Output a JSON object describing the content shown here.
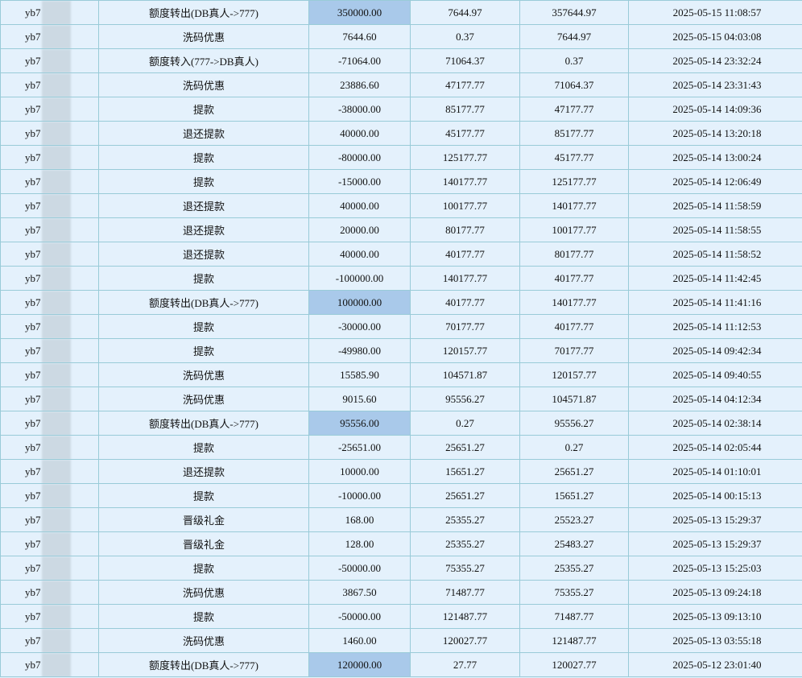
{
  "user_prefix": "yb7",
  "highlight_color": "#a9c9ea",
  "rows": [
    {
      "type": "额度转出(DB真人->777)",
      "amount": "350000.00",
      "before": "7644.97",
      "after": "357644.97",
      "time": "2025-05-15 11:08:57",
      "highlight": true
    },
    {
      "type": "洗码优惠",
      "amount": "7644.60",
      "before": "0.37",
      "after": "7644.97",
      "time": "2025-05-15 04:03:08"
    },
    {
      "type": "额度转入(777->DB真人)",
      "amount": "-71064.00",
      "before": "71064.37",
      "after": "0.37",
      "time": "2025-05-14 23:32:24"
    },
    {
      "type": "洗码优惠",
      "amount": "23886.60",
      "before": "47177.77",
      "after": "71064.37",
      "time": "2025-05-14 23:31:43"
    },
    {
      "type": "提款",
      "amount": "-38000.00",
      "before": "85177.77",
      "after": "47177.77",
      "time": "2025-05-14 14:09:36"
    },
    {
      "type": "退还提款",
      "amount": "40000.00",
      "before": "45177.77",
      "after": "85177.77",
      "time": "2025-05-14 13:20:18"
    },
    {
      "type": "提款",
      "amount": "-80000.00",
      "before": "125177.77",
      "after": "45177.77",
      "time": "2025-05-14 13:00:24"
    },
    {
      "type": "提款",
      "amount": "-15000.00",
      "before": "140177.77",
      "after": "125177.77",
      "time": "2025-05-14 12:06:49"
    },
    {
      "type": "退还提款",
      "amount": "40000.00",
      "before": "100177.77",
      "after": "140177.77",
      "time": "2025-05-14 11:58:59"
    },
    {
      "type": "退还提款",
      "amount": "20000.00",
      "before": "80177.77",
      "after": "100177.77",
      "time": "2025-05-14 11:58:55"
    },
    {
      "type": "退还提款",
      "amount": "40000.00",
      "before": "40177.77",
      "after": "80177.77",
      "time": "2025-05-14 11:58:52"
    },
    {
      "type": "提款",
      "amount": "-100000.00",
      "before": "140177.77",
      "after": "40177.77",
      "time": "2025-05-14 11:42:45"
    },
    {
      "type": "额度转出(DB真人->777)",
      "amount": "100000.00",
      "before": "40177.77",
      "after": "140177.77",
      "time": "2025-05-14 11:41:16",
      "highlight": true
    },
    {
      "type": "提款",
      "amount": "-30000.00",
      "before": "70177.77",
      "after": "40177.77",
      "time": "2025-05-14 11:12:53"
    },
    {
      "type": "提款",
      "amount": "-49980.00",
      "before": "120157.77",
      "after": "70177.77",
      "time": "2025-05-14 09:42:34"
    },
    {
      "type": "洗码优惠",
      "amount": "15585.90",
      "before": "104571.87",
      "after": "120157.77",
      "time": "2025-05-14 09:40:55"
    },
    {
      "type": "洗码优惠",
      "amount": "9015.60",
      "before": "95556.27",
      "after": "104571.87",
      "time": "2025-05-14 04:12:34"
    },
    {
      "type": "额度转出(DB真人->777)",
      "amount": "95556.00",
      "before": "0.27",
      "after": "95556.27",
      "time": "2025-05-14 02:38:14",
      "highlight": true
    },
    {
      "type": "提款",
      "amount": "-25651.00",
      "before": "25651.27",
      "after": "0.27",
      "time": "2025-05-14 02:05:44"
    },
    {
      "type": "退还提款",
      "amount": "10000.00",
      "before": "15651.27",
      "after": "25651.27",
      "time": "2025-05-14 01:10:01"
    },
    {
      "type": "提款",
      "amount": "-10000.00",
      "before": "25651.27",
      "after": "15651.27",
      "time": "2025-05-14 00:15:13"
    },
    {
      "type": "晋级礼金",
      "amount": "168.00",
      "before": "25355.27",
      "after": "25523.27",
      "time": "2025-05-13 15:29:37"
    },
    {
      "type": "晋级礼金",
      "amount": "128.00",
      "before": "25355.27",
      "after": "25483.27",
      "time": "2025-05-13 15:29:37"
    },
    {
      "type": "提款",
      "amount": "-50000.00",
      "before": "75355.27",
      "after": "25355.27",
      "time": "2025-05-13 15:25:03"
    },
    {
      "type": "洗码优惠",
      "amount": "3867.50",
      "before": "71487.77",
      "after": "75355.27",
      "time": "2025-05-13 09:24:18"
    },
    {
      "type": "提款",
      "amount": "-50000.00",
      "before": "121487.77",
      "after": "71487.77",
      "time": "2025-05-13 09:13:10"
    },
    {
      "type": "洗码优惠",
      "amount": "1460.00",
      "before": "120027.77",
      "after": "121487.77",
      "time": "2025-05-13 03:55:18"
    },
    {
      "type": "额度转出(DB真人->777)",
      "amount": "120000.00",
      "before": "27.77",
      "after": "120027.77",
      "time": "2025-05-12 23:01:40",
      "highlight": true
    }
  ]
}
